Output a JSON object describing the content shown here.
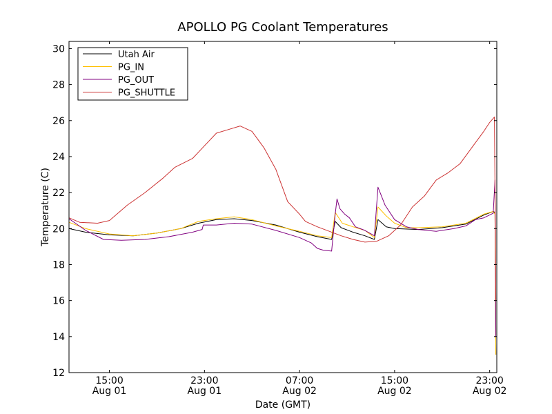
{
  "chart_data": {
    "type": "line",
    "title": "APOLLO PG Coolant Temperatures",
    "xlabel": "Date (GMT)",
    "ylabel": "Temperature (C)",
    "xlim": [
      11.6,
      47.6
    ],
    "ylim": [
      12,
      30.4
    ],
    "legend_position": "top-left",
    "grid": false,
    "yticks": [
      {
        "value": 12,
        "label": "12"
      },
      {
        "value": 14,
        "label": "14"
      },
      {
        "value": 16,
        "label": "16"
      },
      {
        "value": 18,
        "label": "18"
      },
      {
        "value": 20,
        "label": "20"
      },
      {
        "value": 22,
        "label": "22"
      },
      {
        "value": 24,
        "label": "24"
      },
      {
        "value": 26,
        "label": "26"
      },
      {
        "value": 28,
        "label": "28"
      },
      {
        "value": 30,
        "label": "30"
      }
    ],
    "xticks": [
      {
        "value": 15,
        "time": "15:00",
        "date": "Aug 01"
      },
      {
        "value": 23,
        "time": "23:00",
        "date": "Aug 01"
      },
      {
        "value": 31,
        "time": "07:00",
        "date": "Aug 02"
      },
      {
        "value": 39,
        "time": "15:00",
        "date": "Aug 02"
      },
      {
        "value": 47,
        "time": "23:00",
        "date": "Aug 02"
      }
    ],
    "x_units_note": "hours since Aug 01 00:00 GMT",
    "series": [
      {
        "name": "Utah Air",
        "color": "#000000",
        "points": [
          [
            11.6,
            20.0
          ],
          [
            13,
            19.8
          ],
          [
            15,
            19.65
          ],
          [
            17,
            19.6
          ],
          [
            19,
            19.75
          ],
          [
            21,
            20.0
          ],
          [
            22.5,
            20.3
          ],
          [
            24,
            20.5
          ],
          [
            25.5,
            20.55
          ],
          [
            27,
            20.45
          ],
          [
            29,
            20.2
          ],
          [
            31,
            19.8
          ],
          [
            32.5,
            19.55
          ],
          [
            33.7,
            19.4
          ],
          [
            34,
            20.4
          ],
          [
            34.5,
            20.05
          ],
          [
            35.5,
            19.8
          ],
          [
            36.5,
            19.6
          ],
          [
            37.3,
            19.4
          ],
          [
            37.6,
            20.5
          ],
          [
            38.3,
            20.1
          ],
          [
            39,
            20.0
          ],
          [
            41,
            19.95
          ],
          [
            43,
            20.05
          ],
          [
            45,
            20.25
          ],
          [
            46.5,
            20.75
          ],
          [
            47.3,
            20.95
          ],
          [
            47.45,
            20.9
          ],
          [
            47.52,
            13.0
          ]
        ]
      },
      {
        "name": "PG_IN",
        "color": "#ffc000",
        "points": [
          [
            11.6,
            20.35
          ],
          [
            13,
            20.0
          ],
          [
            15,
            19.7
          ],
          [
            17,
            19.6
          ],
          [
            19,
            19.75
          ],
          [
            21,
            20.0
          ],
          [
            22.5,
            20.4
          ],
          [
            24,
            20.55
          ],
          [
            25.5,
            20.65
          ],
          [
            27,
            20.5
          ],
          [
            29,
            20.15
          ],
          [
            31,
            19.85
          ],
          [
            32.5,
            19.6
          ],
          [
            33.7,
            19.5
          ],
          [
            34,
            20.9
          ],
          [
            34.6,
            20.3
          ],
          [
            35.5,
            20.1
          ],
          [
            36.5,
            19.9
          ],
          [
            37.3,
            19.5
          ],
          [
            37.6,
            21.2
          ],
          [
            38.3,
            20.7
          ],
          [
            39,
            20.3
          ],
          [
            40,
            20.05
          ],
          [
            41,
            20.05
          ],
          [
            43,
            20.1
          ],
          [
            45,
            20.3
          ],
          [
            46.5,
            20.8
          ],
          [
            47.3,
            20.95
          ],
          [
            47.45,
            20.8
          ],
          [
            47.52,
            13.0
          ]
        ]
      },
      {
        "name": "PG_OUT",
        "color": "#800080",
        "points": [
          [
            11.6,
            20.55
          ],
          [
            13,
            19.9
          ],
          [
            14.5,
            19.4
          ],
          [
            16,
            19.35
          ],
          [
            18,
            19.4
          ],
          [
            20,
            19.55
          ],
          [
            22,
            19.8
          ],
          [
            22.8,
            19.95
          ],
          [
            22.9,
            20.2
          ],
          [
            24,
            20.2
          ],
          [
            25.5,
            20.3
          ],
          [
            27,
            20.25
          ],
          [
            29,
            19.9
          ],
          [
            31,
            19.5
          ],
          [
            32,
            19.2
          ],
          [
            32.5,
            18.9
          ],
          [
            33,
            18.8
          ],
          [
            33.7,
            18.75
          ],
          [
            34,
            20.8
          ],
          [
            34.15,
            21.65
          ],
          [
            34.4,
            21.1
          ],
          [
            34.8,
            20.8
          ],
          [
            35.2,
            20.6
          ],
          [
            35.7,
            20.1
          ],
          [
            36.5,
            19.9
          ],
          [
            37.3,
            19.6
          ],
          [
            37.6,
            22.3
          ],
          [
            38.2,
            21.3
          ],
          [
            39,
            20.5
          ],
          [
            40,
            20.1
          ],
          [
            41,
            19.95
          ],
          [
            42.5,
            19.85
          ],
          [
            44,
            20.0
          ],
          [
            45,
            20.15
          ],
          [
            45.8,
            20.5
          ],
          [
            46.5,
            20.6
          ],
          [
            47.3,
            20.85
          ],
          [
            47.45,
            22.7
          ],
          [
            47.52,
            14.0
          ]
        ]
      },
      {
        "name": "PG_SHUTTLE",
        "color": "#cc3333",
        "points": [
          [
            11.6,
            20.6
          ],
          [
            12.5,
            20.35
          ],
          [
            14,
            20.3
          ],
          [
            15,
            20.45
          ],
          [
            16.5,
            21.3
          ],
          [
            18,
            22.0
          ],
          [
            19.5,
            22.8
          ],
          [
            20.5,
            23.4
          ],
          [
            22,
            23.9
          ],
          [
            23,
            24.6
          ],
          [
            24,
            25.3
          ],
          [
            25,
            25.5
          ],
          [
            26,
            25.7
          ],
          [
            27,
            25.4
          ],
          [
            28,
            24.5
          ],
          [
            29,
            23.3
          ],
          [
            30,
            21.5
          ],
          [
            31,
            20.8
          ],
          [
            31.5,
            20.4
          ],
          [
            32.5,
            20.1
          ],
          [
            33.5,
            19.85
          ],
          [
            34.5,
            19.6
          ],
          [
            35.5,
            19.4
          ],
          [
            36.5,
            19.25
          ],
          [
            37.5,
            19.3
          ],
          [
            38.5,
            19.6
          ],
          [
            39.5,
            20.2
          ],
          [
            40.5,
            21.2
          ],
          [
            41.5,
            21.8
          ],
          [
            42.5,
            22.7
          ],
          [
            43.5,
            23.1
          ],
          [
            44.5,
            23.6
          ],
          [
            45.5,
            24.5
          ],
          [
            46.5,
            25.4
          ],
          [
            47.0,
            25.9
          ],
          [
            47.4,
            26.2
          ],
          [
            47.52,
            16.0
          ]
        ]
      }
    ]
  }
}
